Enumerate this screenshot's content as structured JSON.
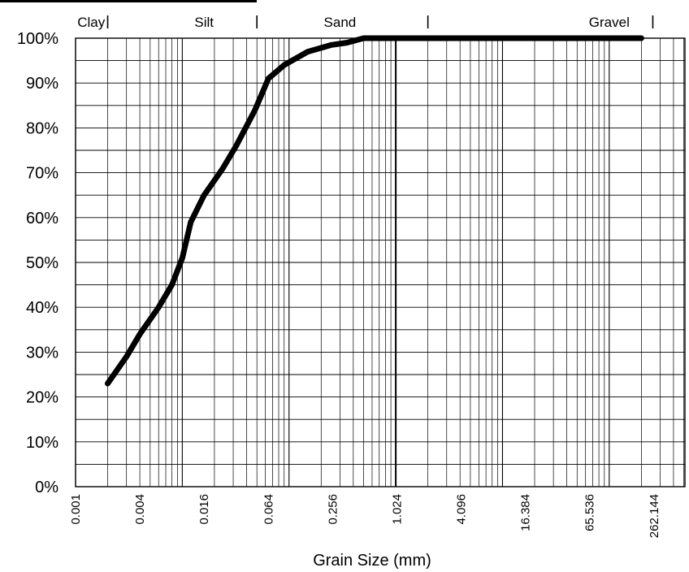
{
  "chart_data": {
    "type": "line",
    "x_scale": "log2",
    "xlim": [
      0.001,
      512
    ],
    "ylim": [
      0,
      100
    ],
    "xlabel": "Grain Size (mm)",
    "ylabel": "",
    "grid": true,
    "y_ticks": [
      "0%",
      "10%",
      "20%",
      "30%",
      "40%",
      "50%",
      "60%",
      "70%",
      "80%",
      "90%",
      "100%"
    ],
    "x_ticks": [
      {
        "value": 0.001,
        "label": "0.001"
      },
      {
        "value": 0.004,
        "label": "0.004"
      },
      {
        "value": 0.016,
        "label": "0.016"
      },
      {
        "value": 0.064,
        "label": "0.064"
      },
      {
        "value": 0.256,
        "label": "0.256"
      },
      {
        "value": 1.024,
        "label": "1.024"
      },
      {
        "value": 4.096,
        "label": "4.096"
      },
      {
        "value": 16.384,
        "label": "16.384"
      },
      {
        "value": 65.536,
        "label": "65.536"
      },
      {
        "value": 262.144,
        "label": "262.144"
      }
    ],
    "classes": [
      {
        "label": "Clay",
        "x": 0.0014
      },
      {
        "label": "Silt",
        "x": 0.016
      },
      {
        "label": "Sand",
        "x": 0.3
      },
      {
        "label": "Gravel",
        "x": 100
      }
    ],
    "class_boundaries": [
      0.002,
      0.05,
      2,
      256
    ],
    "series": [
      {
        "color": "#000000",
        "x": [
          0.002,
          0.003,
          0.004,
          0.006,
          0.008,
          0.01,
          0.012,
          0.016,
          0.024,
          0.032,
          0.048,
          0.064,
          0.09,
          0.15,
          0.25,
          0.35,
          0.5,
          0.8,
          1.0,
          2,
          10,
          50,
          200
        ],
        "y": [
          23,
          29,
          34,
          40,
          45,
          51,
          59,
          65,
          71,
          76,
          84,
          91,
          94,
          97,
          98.5,
          99,
          100,
          100,
          100,
          100,
          100,
          100,
          100
        ]
      }
    ]
  }
}
